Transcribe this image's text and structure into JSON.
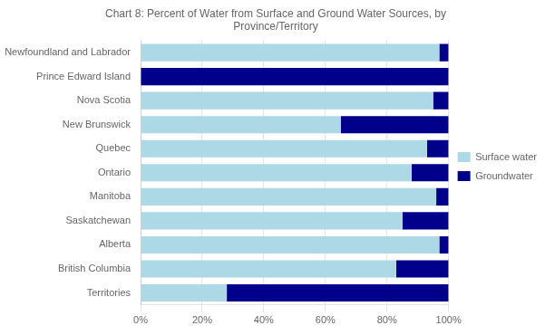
{
  "chart_data": {
    "type": "bar",
    "title": "Chart 8: Percent of Water from Surface and Ground Water Sources, by\nProvince/Territory",
    "orientation": "horizontal",
    "stacked": true,
    "categories": [
      "Newfoundland and Labrador",
      "Prince Edward Island",
      "Nova Scotia",
      "New Brunswick",
      "Quebec",
      "Ontario",
      "Manitoba",
      "Saskatchewan",
      "Alberta",
      "British Columbia",
      "Territories"
    ],
    "series": [
      {
        "name": "Surface water",
        "color": "#add8e6",
        "values": [
          97,
          0,
          95,
          65,
          93,
          88,
          96,
          85,
          97,
          83,
          28
        ]
      },
      {
        "name": "Groundwater",
        "color": "#00008b",
        "values": [
          3,
          100,
          5,
          35,
          7,
          12,
          4,
          15,
          3,
          17,
          72
        ]
      }
    ],
    "xlim": [
      0,
      100
    ],
    "xticks": [
      {
        "value": 0,
        "label": "0%"
      },
      {
        "value": 20,
        "label": "20%"
      },
      {
        "value": 40,
        "label": "40%"
      },
      {
        "value": 60,
        "label": "60%"
      },
      {
        "value": 80,
        "label": "80%"
      },
      {
        "value": 100,
        "label": "100%"
      }
    ],
    "grid": true,
    "legend": "right"
  }
}
